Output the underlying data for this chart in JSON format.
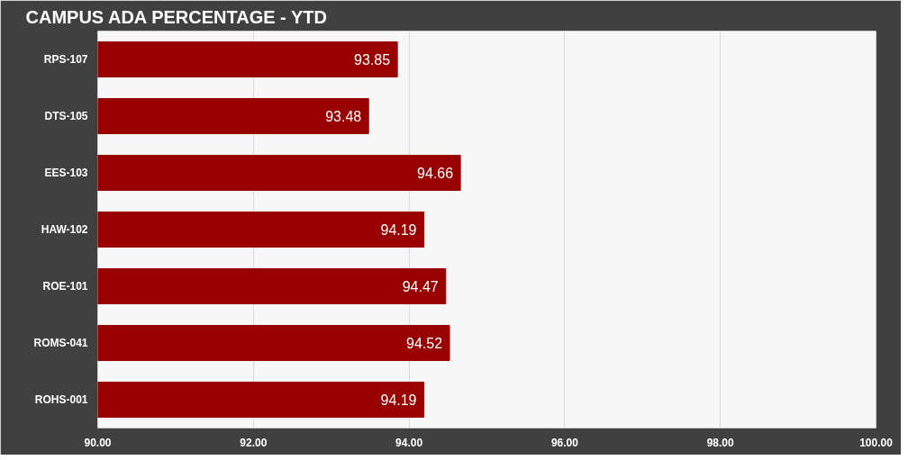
{
  "chart_data": {
    "type": "bar",
    "orientation": "horizontal",
    "title": "CAMPUS ADA PERCENTAGE - YTD",
    "categories": [
      "RPS-107",
      "DTS-105",
      "EES-103",
      "HAW-102",
      "ROE-101",
      "ROMS-041",
      "ROHS-001"
    ],
    "values": [
      93.85,
      93.48,
      94.66,
      94.19,
      94.47,
      94.52,
      94.19
    ],
    "color": "#990000",
    "xlim": [
      90,
      100
    ],
    "xticks": [
      {
        "value": 90,
        "label": "90.00"
      },
      {
        "value": 92,
        "label": "92.00"
      },
      {
        "value": 94,
        "label": "94.00"
      },
      {
        "value": 96,
        "label": "96.00"
      },
      {
        "value": 98,
        "label": "98.00"
      },
      {
        "value": 100,
        "label": "100.00"
      }
    ],
    "grid": "x",
    "data_labels": true
  }
}
